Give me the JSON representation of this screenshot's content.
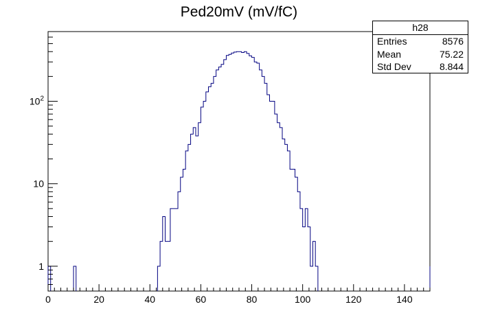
{
  "title": "Ped20mV (mV/fC)",
  "stats": {
    "name": "h28",
    "entries_label": "Entries",
    "entries": "8576",
    "mean_label": "Mean",
    "mean": "75.22",
    "stddev_label": "Std Dev",
    "stddev": "8.844"
  },
  "colors": {
    "line": "#000080",
    "axis": "#000000",
    "background": "#ffffff"
  },
  "chart_data": {
    "type": "histogram",
    "title": "Ped20mV (mV/fC)",
    "xlabel": "",
    "ylabel": "",
    "xlim": [
      0,
      150
    ],
    "ylim": [
      0.5,
      700
    ],
    "yscale": "log",
    "grid": false,
    "legend": "none",
    "x_ticks": [
      0,
      20,
      40,
      60,
      80,
      100,
      120,
      140
    ],
    "x_tick_labels": [
      "0",
      "20",
      "40",
      "60",
      "80",
      "100",
      "120",
      "140"
    ],
    "y_tick_labels": [
      "1",
      "10",
      "10^2"
    ],
    "y_tick_values": [
      1,
      10,
      100
    ],
    "bin_width": 1,
    "bins": [
      {
        "x": 0,
        "y": 1
      },
      {
        "x": 10,
        "y": 1
      },
      {
        "x": 43,
        "y": 1
      },
      {
        "x": 44,
        "y": 2
      },
      {
        "x": 45,
        "y": 4
      },
      {
        "x": 46,
        "y": 2
      },
      {
        "x": 47,
        "y": 2
      },
      {
        "x": 48,
        "y": 5
      },
      {
        "x": 49,
        "y": 5
      },
      {
        "x": 50,
        "y": 5
      },
      {
        "x": 51,
        "y": 8
      },
      {
        "x": 52,
        "y": 12
      },
      {
        "x": 53,
        "y": 15
      },
      {
        "x": 54,
        "y": 25
      },
      {
        "x": 55,
        "y": 30
      },
      {
        "x": 56,
        "y": 40
      },
      {
        "x": 57,
        "y": 48
      },
      {
        "x": 58,
        "y": 38
      },
      {
        "x": 59,
        "y": 55
      },
      {
        "x": 60,
        "y": 85
      },
      {
        "x": 61,
        "y": 100
      },
      {
        "x": 62,
        "y": 130
      },
      {
        "x": 63,
        "y": 150
      },
      {
        "x": 64,
        "y": 165
      },
      {
        "x": 65,
        "y": 200
      },
      {
        "x": 66,
        "y": 240
      },
      {
        "x": 67,
        "y": 260
      },
      {
        "x": 68,
        "y": 280
      },
      {
        "x": 69,
        "y": 320
      },
      {
        "x": 70,
        "y": 360
      },
      {
        "x": 71,
        "y": 370
      },
      {
        "x": 72,
        "y": 385
      },
      {
        "x": 73,
        "y": 395
      },
      {
        "x": 74,
        "y": 400
      },
      {
        "x": 75,
        "y": 400
      },
      {
        "x": 76,
        "y": 390
      },
      {
        "x": 77,
        "y": 400
      },
      {
        "x": 78,
        "y": 380
      },
      {
        "x": 79,
        "y": 355
      },
      {
        "x": 80,
        "y": 340
      },
      {
        "x": 81,
        "y": 300
      },
      {
        "x": 82,
        "y": 290
      },
      {
        "x": 83,
        "y": 240
      },
      {
        "x": 84,
        "y": 200
      },
      {
        "x": 85,
        "y": 165
      },
      {
        "x": 86,
        "y": 120
      },
      {
        "x": 87,
        "y": 100
      },
      {
        "x": 88,
        "y": 100
      },
      {
        "x": 89,
        "y": 70
      },
      {
        "x": 90,
        "y": 55
      },
      {
        "x": 91,
        "y": 48
      },
      {
        "x": 92,
        "y": 35
      },
      {
        "x": 93,
        "y": 30
      },
      {
        "x": 94,
        "y": 25
      },
      {
        "x": 95,
        "y": 15
      },
      {
        "x": 96,
        "y": 15
      },
      {
        "x": 97,
        "y": 12
      },
      {
        "x": 98,
        "y": 8
      },
      {
        "x": 99,
        "y": 5
      },
      {
        "x": 100,
        "y": 3
      },
      {
        "x": 101,
        "y": 5
      },
      {
        "x": 102,
        "y": 3
      },
      {
        "x": 103,
        "y": 1
      },
      {
        "x": 104,
        "y": 2
      },
      {
        "x": 105,
        "y": 1
      },
      {
        "x": 150,
        "y": 1
      }
    ]
  }
}
